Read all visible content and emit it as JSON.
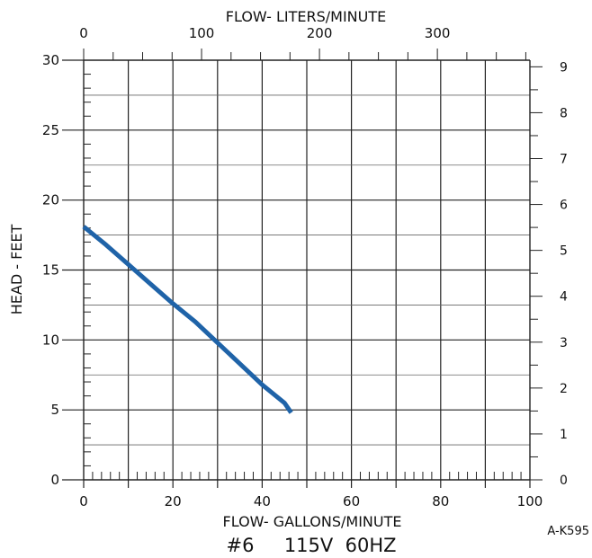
{
  "chart_data": {
    "type": "line",
    "title": "#6     115V  60HZ",
    "xlabel": "FLOW-   GALLONS/MINUTE",
    "x2label": "FLOW-   LITERS/MINUTE",
    "ylabel": "HEAD  -  FEET",
    "code": "A-K595",
    "xlim": [
      0,
      100
    ],
    "ylim": [
      0,
      30
    ],
    "x2lim": [
      0,
      378.5
    ],
    "y2lim": [
      0,
      9.144
    ],
    "x_ticks": [
      {
        "v": 0,
        "label": "0"
      },
      {
        "v": 20,
        "label": "20"
      },
      {
        "v": 40,
        "label": "40"
      },
      {
        "v": 60,
        "label": "60"
      },
      {
        "v": 80,
        "label": "80"
      },
      {
        "v": 100,
        "label": "100"
      }
    ],
    "x2_ticks": [
      {
        "v": 0,
        "label": "0"
      },
      {
        "v": 100,
        "label": "100"
      },
      {
        "v": 200,
        "label": "200"
      },
      {
        "v": 300,
        "label": "300"
      }
    ],
    "y_ticks": [
      {
        "v": 0,
        "label": "0"
      },
      {
        "v": 5,
        "label": "5"
      },
      {
        "v": 10,
        "label": "10"
      },
      {
        "v": 15,
        "label": "15"
      },
      {
        "v": 20,
        "label": "20"
      },
      {
        "v": 25,
        "label": "25"
      },
      {
        "v": 30,
        "label": "30"
      }
    ],
    "y2_ticks": [
      {
        "v": 0,
        "label": "0"
      },
      {
        "v": 1,
        "label": "1"
      },
      {
        "v": 2,
        "label": "2"
      },
      {
        "v": 3,
        "label": "3"
      },
      {
        "v": 4,
        "label": "4"
      },
      {
        "v": 5,
        "label": "5"
      },
      {
        "v": 6,
        "label": "6"
      },
      {
        "v": 7,
        "label": "7"
      },
      {
        "v": 8,
        "label": "8"
      },
      {
        "v": 9,
        "label": "9"
      }
    ],
    "grid": true,
    "series": [
      {
        "color": "#1f63a8",
        "x": [
          0,
          5,
          10,
          15,
          20,
          25,
          30,
          35,
          40,
          45,
          46.5
        ],
        "y": [
          18.1,
          16.8,
          15.4,
          14.0,
          12.6,
          11.3,
          9.8,
          8.3,
          6.8,
          5.5,
          4.8
        ]
      }
    ]
  }
}
